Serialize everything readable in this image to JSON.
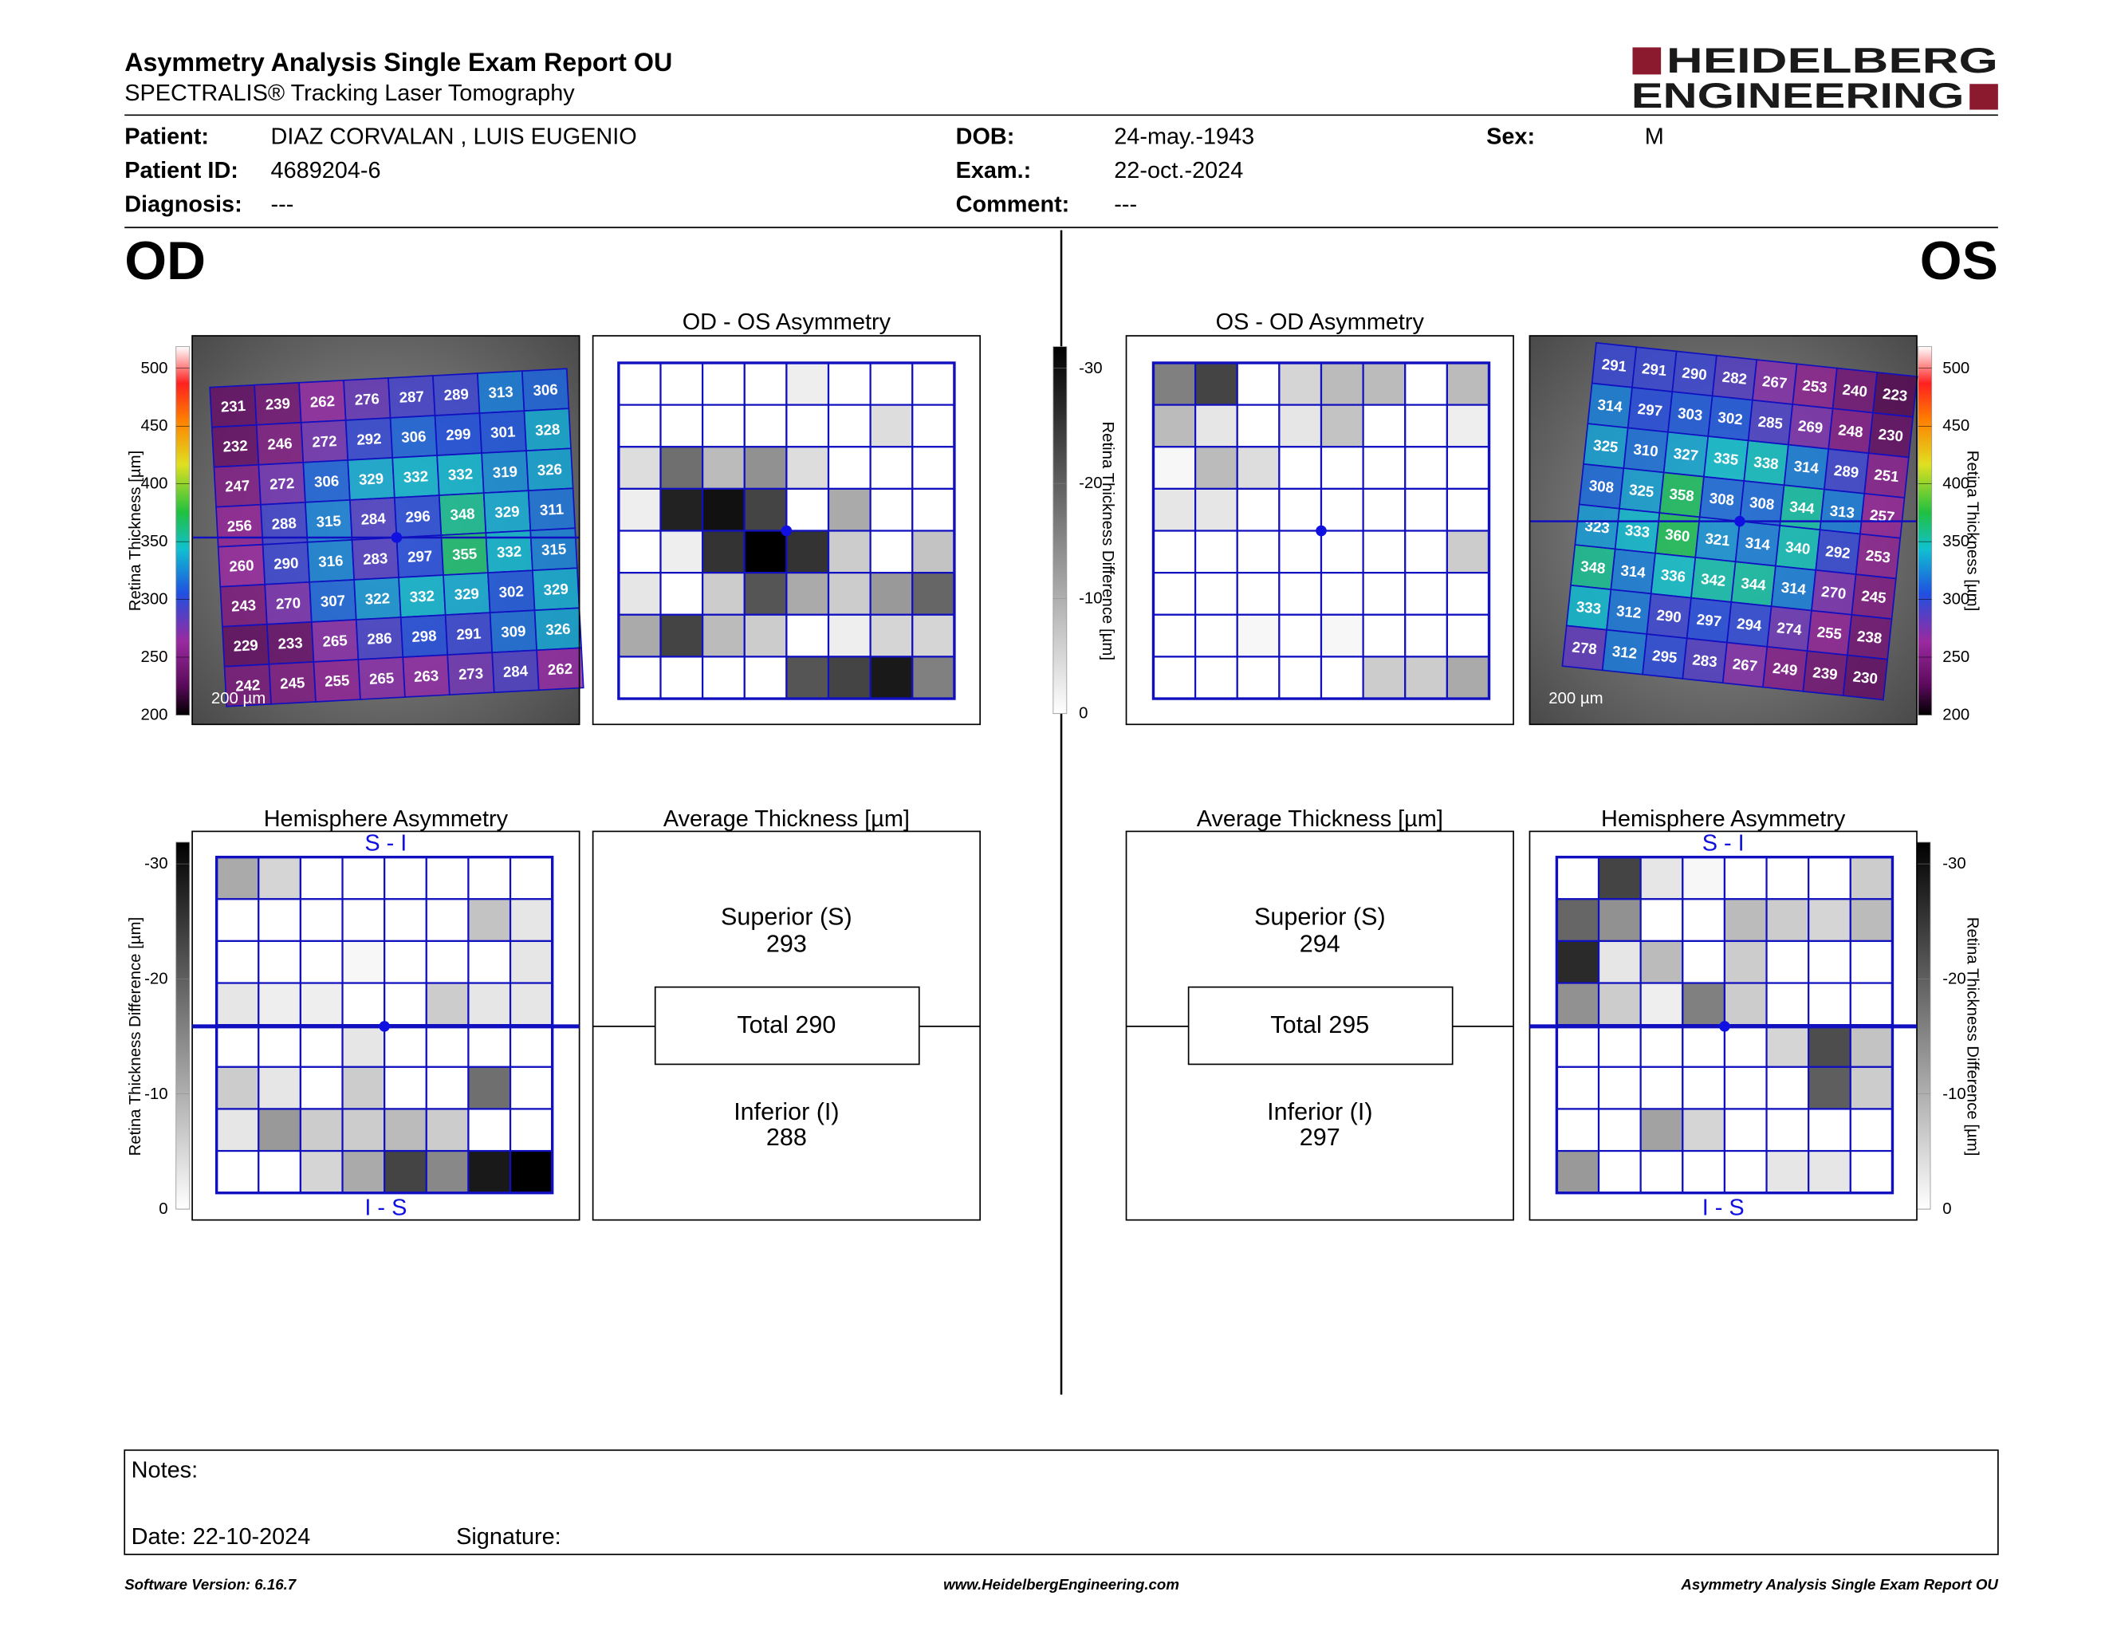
{
  "header": {
    "title": "Asymmetry Analysis Single Exam Report OU",
    "subtitle": "SPECTRALIS® Tracking Laser Tomography",
    "logo": [
      "HEIDELBERG",
      "ENGINEERING"
    ]
  },
  "patient": {
    "patient_label": "Patient:",
    "patient": "DIAZ CORVALAN , LUIS EUGENIO",
    "id_label": "Patient ID:",
    "id": "4689204-6",
    "diagnosis_label": "Diagnosis:",
    "diagnosis": "---",
    "dob_label": "DOB:",
    "dob": "24-may.-1943",
    "exam_label": "Exam.:",
    "exam": "22-oct.-2024",
    "comment_label": "Comment:",
    "comment": "---",
    "sex_label": "Sex:",
    "sex": "M"
  },
  "thickness_scale": {
    "label": "Retina Thickness [µm]",
    "ticks": [
      500,
      450,
      400,
      350,
      300,
      250,
      200
    ]
  },
  "difference_scale": {
    "label": "Retina Thickness Difference [µm]",
    "ticks": [
      -30,
      -20,
      -10,
      0
    ]
  },
  "od": {
    "eye": "OD",
    "map": {
      "scale_bar": "200 µm",
      "values": [
        [
          231,
          239,
          262,
          276,
          287,
          289,
          313,
          306
        ],
        [
          232,
          246,
          272,
          292,
          306,
          299,
          301,
          328
        ],
        [
          247,
          272,
          306,
          329,
          332,
          332,
          319,
          326
        ],
        [
          256,
          288,
          315,
          284,
          296,
          348,
          329,
          311
        ],
        [
          260,
          290,
          316,
          283,
          297,
          355,
          332,
          315
        ],
        [
          243,
          270,
          307,
          322,
          332,
          329,
          302,
          329
        ],
        [
          229,
          233,
          265,
          286,
          298,
          291,
          309,
          326
        ],
        [
          242,
          245,
          255,
          265,
          263,
          273,
          284,
          262
        ]
      ]
    },
    "asymmetry": {
      "title": "OD - OS Asymmetry",
      "values": [
        [
          0,
          0,
          0,
          0,
          -2,
          0,
          0,
          0
        ],
        [
          0,
          0,
          0,
          0,
          0,
          0,
          -4,
          0
        ],
        [
          -4,
          -17,
          -8,
          -13,
          -4,
          0,
          0,
          0
        ],
        [
          -2,
          -26,
          -28,
          -22,
          0,
          -10,
          0,
          0
        ],
        [
          0,
          -2,
          -24,
          -30,
          -24,
          -6,
          0,
          -7
        ],
        [
          -3,
          0,
          -6,
          -20,
          -10,
          -6,
          -12,
          -18
        ],
        [
          -10,
          -22,
          -8,
          -6,
          0,
          -2,
          -5,
          -5
        ],
        [
          0,
          0,
          0,
          0,
          -20,
          -22,
          -27,
          -15
        ]
      ]
    },
    "hemisphere": {
      "title": "Hemisphere Asymmetry",
      "top": "S - I",
      "bottom": "I - S",
      "values": [
        [
          -10,
          -5,
          0,
          0,
          0,
          0,
          0,
          0
        ],
        [
          0,
          0,
          0,
          0,
          0,
          0,
          -7,
          -3
        ],
        [
          0,
          0,
          0,
          -1,
          0,
          0,
          0,
          -3
        ],
        [
          -3,
          -2,
          -2,
          0,
          0,
          -6,
          -3,
          -3
        ],
        [
          0,
          0,
          0,
          -3,
          0,
          0,
          0,
          0
        ],
        [
          -6,
          -3,
          0,
          -6,
          0,
          0,
          -17,
          0
        ],
        [
          -3,
          -12,
          -6,
          -6,
          -8,
          -6,
          0,
          0
        ],
        [
          0,
          0,
          -5,
          -10,
          -22,
          -14,
          -27,
          -30
        ]
      ]
    },
    "average": {
      "title": "Average Thickness [µm]",
      "superior_label": "Superior (S)",
      "superior": 293,
      "total_label": "Total",
      "total": 290,
      "inferior_label": "Inferior (I)",
      "inferior": 288
    }
  },
  "os": {
    "eye": "OS",
    "map": {
      "scale_bar": "200 µm",
      "values": [
        [
          291,
          291,
          290,
          282,
          267,
          253,
          240,
          223
        ],
        [
          314,
          297,
          303,
          302,
          285,
          269,
          248,
          230
        ],
        [
          325,
          310,
          327,
          335,
          338,
          314,
          289,
          251
        ],
        [
          308,
          325,
          358,
          308,
          308,
          344,
          313,
          257
        ],
        [
          323,
          333,
          360,
          321,
          314,
          340,
          292,
          253
        ],
        [
          348,
          314,
          336,
          342,
          344,
          314,
          270,
          245
        ],
        [
          333,
          312,
          290,
          297,
          294,
          274,
          255,
          238
        ],
        [
          278,
          312,
          295,
          283,
          267,
          249,
          239,
          230
        ]
      ]
    },
    "asymmetry": {
      "title": "OS - OD Asymmetry",
      "values": [
        [
          -15,
          -22,
          0,
          -5,
          -8,
          -8,
          0,
          -8
        ],
        [
          -8,
          -3,
          0,
          -3,
          -7,
          0,
          0,
          -2
        ],
        [
          -1,
          -8,
          -4,
          0,
          0,
          0,
          0,
          0
        ],
        [
          -3,
          -3,
          0,
          0,
          0,
          0,
          0,
          0
        ],
        [
          0,
          0,
          0,
          0,
          0,
          0,
          0,
          -6
        ],
        [
          0,
          0,
          0,
          0,
          0,
          0,
          0,
          0
        ],
        [
          0,
          0,
          -1,
          0,
          -1,
          0,
          0,
          0
        ],
        [
          0,
          0,
          0,
          0,
          0,
          -6,
          -6,
          -10
        ]
      ]
    },
    "hemisphere": {
      "title": "Hemisphere Asymmetry",
      "top": "S - I",
      "bottom": "I - S",
      "values": [
        [
          0,
          -22,
          -3,
          -1,
          0,
          0,
          0,
          -6
        ],
        [
          -18,
          -13,
          0,
          0,
          -8,
          -6,
          -5,
          -8
        ],
        [
          -25,
          -3,
          -8,
          0,
          -6,
          0,
          0,
          0
        ],
        [
          -13,
          -6,
          -2,
          -15,
          -6,
          0,
          0,
          0
        ],
        [
          0,
          0,
          0,
          0,
          0,
          -5,
          -21,
          -7
        ],
        [
          0,
          0,
          0,
          0,
          0,
          0,
          -19,
          -6
        ],
        [
          0,
          0,
          -11,
          -5,
          0,
          0,
          0,
          0
        ],
        [
          -12,
          0,
          0,
          0,
          0,
          -3,
          -3,
          0
        ]
      ]
    },
    "average": {
      "title": "Average Thickness [µm]",
      "superior_label": "Superior (S)",
      "superior": 294,
      "total_label": "Total",
      "total": 295,
      "inferior_label": "Inferior (I)",
      "inferior": 297
    }
  },
  "notes": {
    "notes_label": "Notes:",
    "date": "Date: 22-10-2024",
    "signature": "Signature:"
  },
  "footer": {
    "left": "Software Version: 6.16.7",
    "center": "www.HeidelbergEngineering.com",
    "right": "Asymmetry Analysis Single Exam Report OU"
  }
}
